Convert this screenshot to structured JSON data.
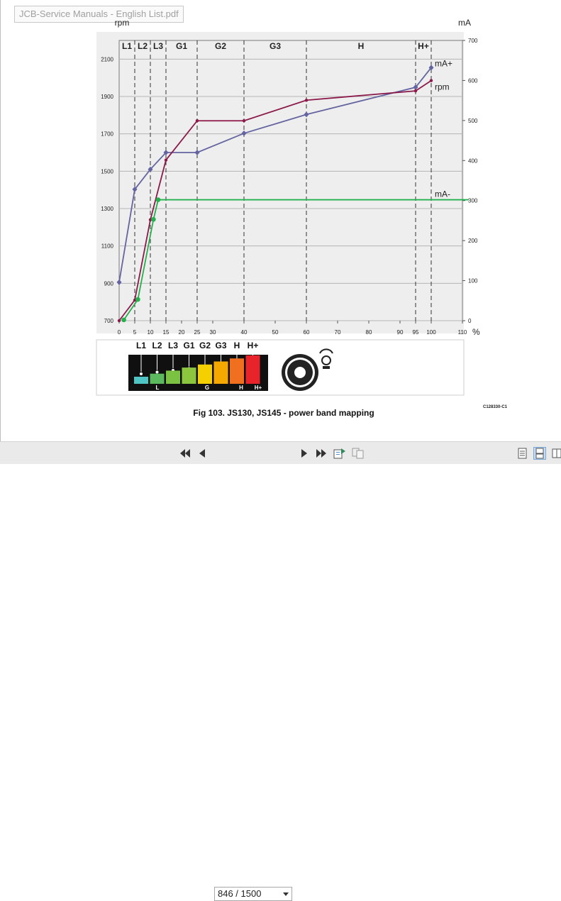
{
  "window": {
    "doc_title": "JCB-Service Manuals - English List.pdf"
  },
  "figure": {
    "caption": "Fig 103. JS130, JS145 - power band mapping",
    "ref_code": "C128330-C1"
  },
  "chart_data": {
    "type": "line",
    "x_unit": "%",
    "xlim": [
      0,
      110
    ],
    "x_ticks": [
      0,
      5,
      10,
      15,
      20,
      25,
      30,
      40,
      50,
      60,
      70,
      80,
      90,
      95,
      100,
      110
    ],
    "y_left": {
      "label": "rpm",
      "ticks": [
        700,
        900,
        1100,
        1300,
        1500,
        1700,
        1900,
        2100
      ],
      "range": [
        700,
        2200
      ]
    },
    "y_right": {
      "label": "mA",
      "ticks": [
        0,
        100,
        200,
        300,
        400,
        500,
        600,
        700
      ],
      "range": [
        0,
        700
      ]
    },
    "bands": [
      {
        "label": "L1",
        "from": 0,
        "to": 5
      },
      {
        "label": "L2",
        "from": 5,
        "to": 10
      },
      {
        "label": "L3",
        "from": 10,
        "to": 15
      },
      {
        "label": "G1",
        "from": 15,
        "to": 25
      },
      {
        "label": "G2",
        "from": 25,
        "to": 40
      },
      {
        "label": "G3",
        "from": 40,
        "to": 60
      },
      {
        "label": "H",
        "from": 60,
        "to": 95
      },
      {
        "label": "H+",
        "from": 95,
        "to": 100
      }
    ],
    "series": [
      {
        "name": "mA+",
        "axis": "right",
        "color": "#6464a0",
        "marker": "diamond",
        "points": [
          [
            0,
            96
          ],
          [
            5,
            328
          ],
          [
            10,
            378
          ],
          [
            15,
            420
          ],
          [
            25,
            420
          ],
          [
            40,
            468
          ],
          [
            60,
            515
          ],
          [
            95,
            583
          ],
          [
            100,
            632
          ]
        ]
      },
      {
        "name": "rpm",
        "axis": "left",
        "color": "#8b1a4a",
        "marker": "dot",
        "points": [
          [
            0,
            700
          ],
          [
            5,
            810
          ],
          [
            10,
            1240
          ],
          [
            15,
            1560
          ],
          [
            25,
            1770
          ],
          [
            40,
            1770
          ],
          [
            60,
            1880
          ],
          [
            95,
            1930
          ],
          [
            100,
            1985
          ]
        ]
      },
      {
        "name": "mA-",
        "axis": "right",
        "color": "#22b14c",
        "marker": "dot",
        "points": [
          [
            1.5,
            2
          ],
          [
            6,
            53
          ],
          [
            11,
            253
          ],
          [
            12.5,
            302
          ],
          [
            112,
            302
          ]
        ]
      }
    ]
  },
  "mode_panel": {
    "labels": [
      "L1",
      "L2",
      "L3",
      "G1",
      "G2",
      "G3",
      "H",
      "H+"
    ],
    "sub_labels": [
      "L",
      "G",
      "H",
      "H+"
    ],
    "colors": [
      "#4fc4c4",
      "#5cb85c",
      "#7cc242",
      "#8cc63f",
      "#f5d000",
      "#f5a800",
      "#f07020",
      "#e8232a"
    ]
  },
  "toolbar": {
    "page_display": "846 / 1500"
  }
}
